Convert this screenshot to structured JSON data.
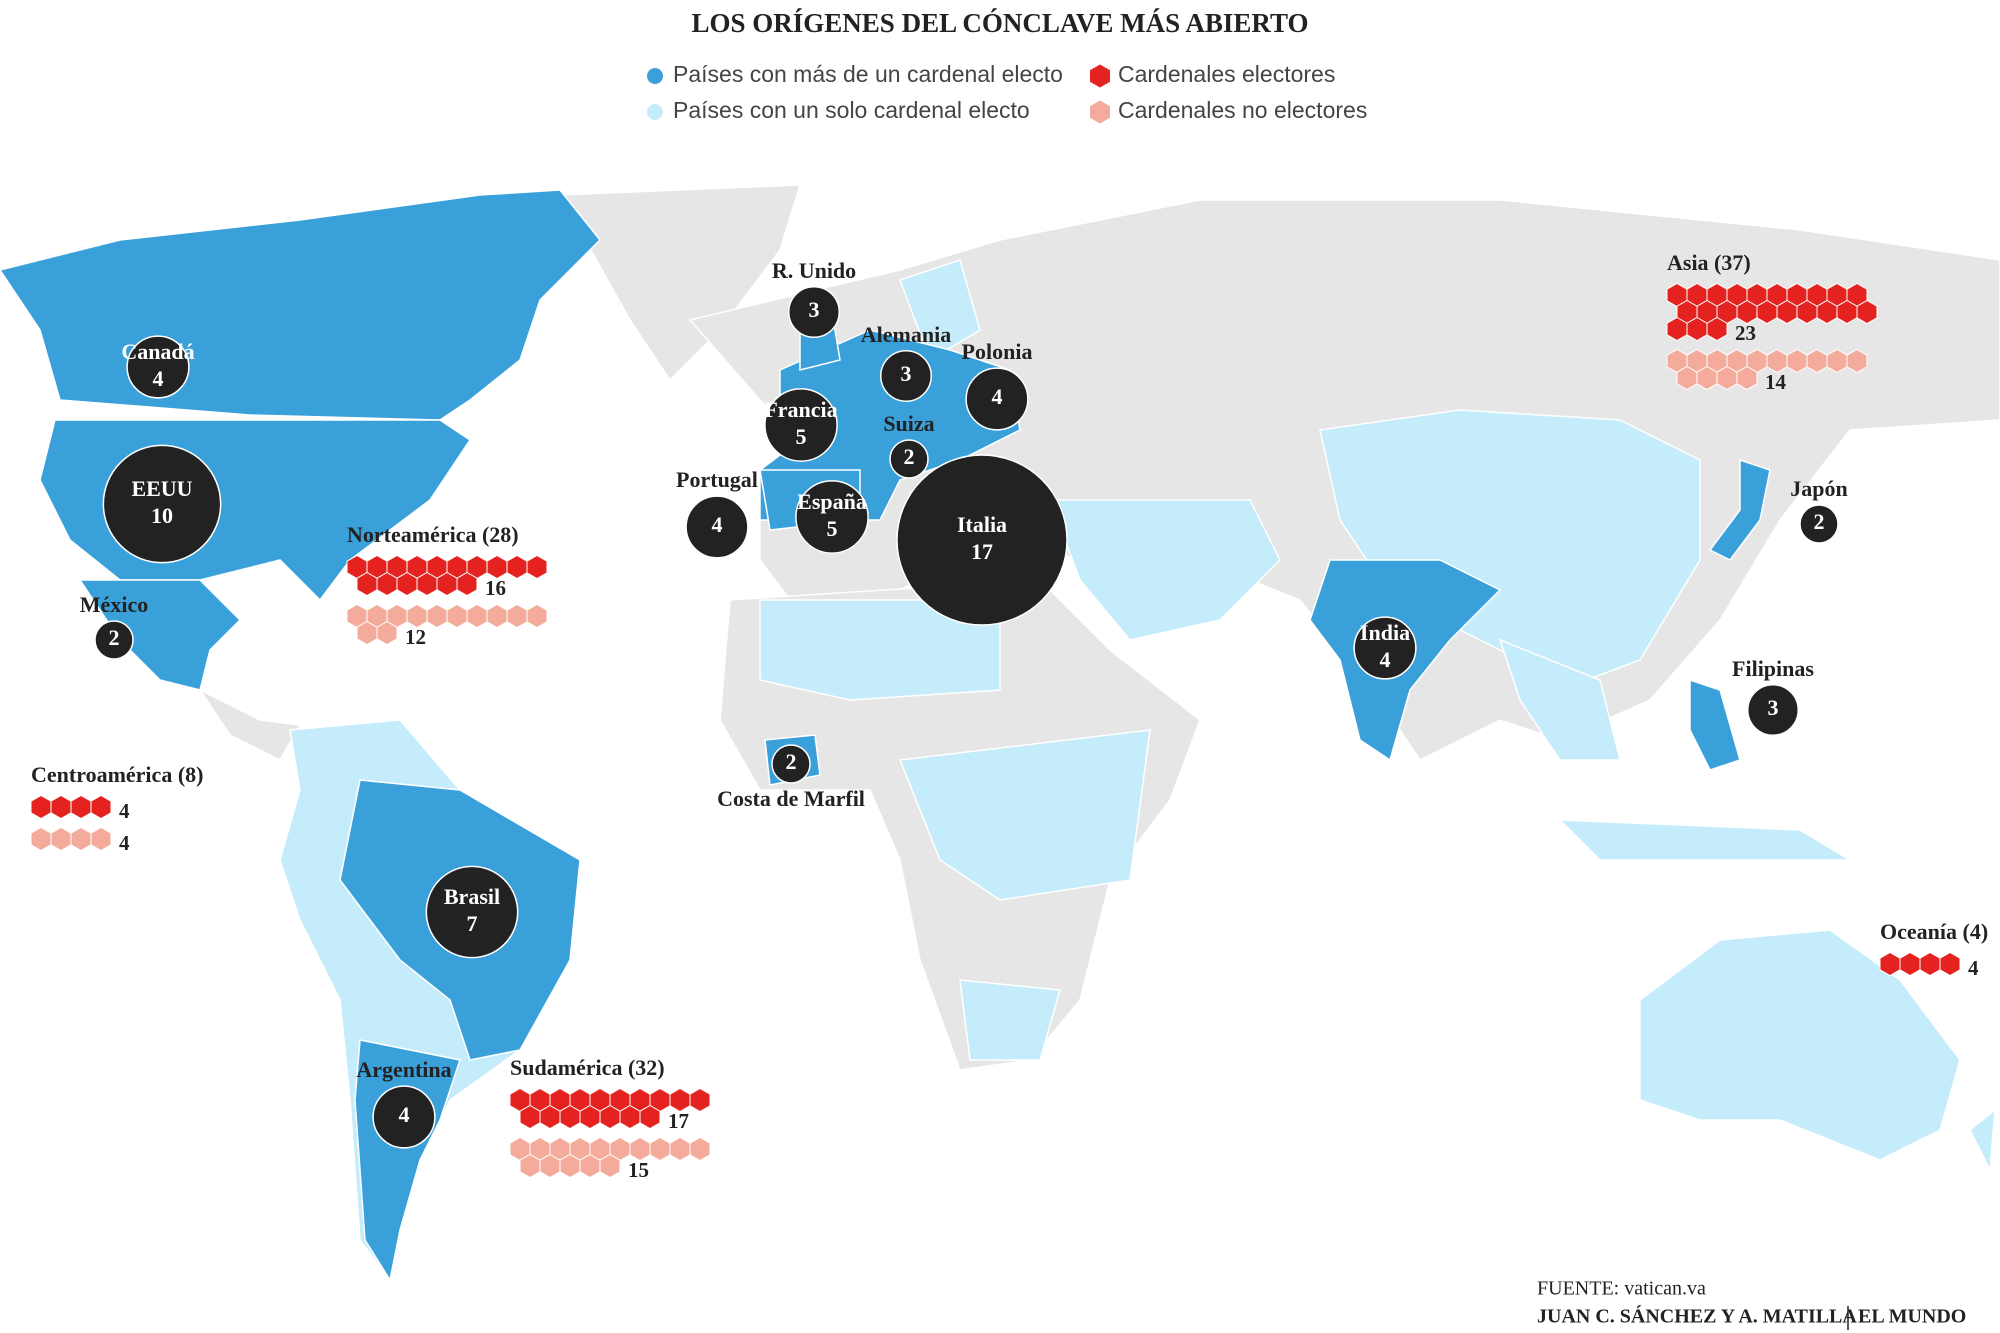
{
  "header": {
    "title": "LOS ORÍGENES DEL CÓNCLAVE MÁS ABIERTO"
  },
  "legend": [
    {
      "label": "Países con más de un cardenal electo",
      "color": "#3aa0d9",
      "shape": "circle"
    },
    {
      "label": "Países con un solo cardenal electo",
      "color": "#c4ecfa",
      "shape": "circle"
    },
    {
      "label": "Cardenales electores",
      "color": "#e42320",
      "shape": "hexagon"
    },
    {
      "label": "Cardenales no electores",
      "color": "#f4ab9b",
      "shape": "hexagon"
    }
  ],
  "countries": [
    {
      "name": "Canadá",
      "value": 4
    },
    {
      "name": "EEUU",
      "value": 10
    },
    {
      "name": "México",
      "value": 2
    },
    {
      "name": "R. Unido",
      "value": 3
    },
    {
      "name": "Alemania",
      "value": 3
    },
    {
      "name": "Polonia",
      "value": 4
    },
    {
      "name": "Francia",
      "value": 5
    },
    {
      "name": "Suiza",
      "value": 2
    },
    {
      "name": "Portugal",
      "value": 4
    },
    {
      "name": "España",
      "value": 5
    },
    {
      "name": "Italia",
      "value": 17
    },
    {
      "name": "India",
      "value": 4
    },
    {
      "name": "Japón",
      "value": 2
    },
    {
      "name": "Filipinas",
      "value": 3
    },
    {
      "name": "Costa de Marfil",
      "value": 2
    },
    {
      "name": "Brasil",
      "value": 7
    },
    {
      "name": "Argentina",
      "value": 4
    }
  ],
  "regions": [
    {
      "label": "Norteamérica (28)",
      "electores": 16,
      "no_electores": 12
    },
    {
      "label": "Centroamérica (8)",
      "electores": 4,
      "no_electores": 4
    },
    {
      "label": "Sudamérica (32)",
      "electores": 17,
      "no_electores": 15
    },
    {
      "label": "Asia (37)",
      "electores": 23,
      "no_electores": 14
    },
    {
      "label": "Oceanía (4)",
      "electores": 4
    }
  ],
  "footer": {
    "source": "FUENTE: vatican.va",
    "credits": "JUAN C. SÁNCHEZ Y A. MATILLA",
    "outlet": "EL MUNDO"
  }
}
